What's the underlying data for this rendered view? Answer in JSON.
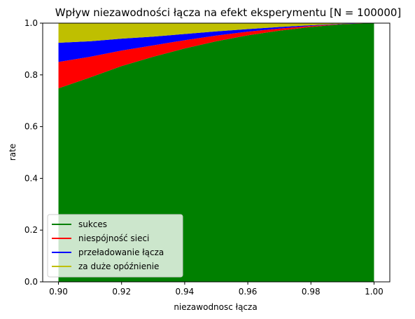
{
  "chart_data": {
    "type": "area",
    "stacked": true,
    "title": "Wpływ niezawodności łącza na efekt eksperymentu [N = 100000]",
    "xlabel": "niezawodnosc łącza",
    "ylabel": "rate",
    "xlim": [
      0.895,
      1.005
    ],
    "ylim": [
      0.0,
      1.0
    ],
    "xticks": [
      "0.90",
      "0.92",
      "0.94",
      "0.96",
      "0.98",
      "1.00"
    ],
    "xtick_values": [
      0.9,
      0.92,
      0.94,
      0.96,
      0.98,
      1.0
    ],
    "yticks": [
      "0.0",
      "0.2",
      "0.4",
      "0.6",
      "0.8",
      "1.0"
    ],
    "ytick_values": [
      0.0,
      0.2,
      0.4,
      0.6,
      0.8,
      1.0
    ],
    "grid": false,
    "legend_position": "lower-left",
    "x": [
      0.9,
      0.91,
      0.92,
      0.93,
      0.94,
      0.95,
      0.96,
      0.97,
      0.98,
      0.99,
      1.0
    ],
    "series": [
      {
        "name": "sukces",
        "color": "#008000",
        "values": [
          0.748,
          0.79,
          0.834,
          0.87,
          0.902,
          0.93,
          0.953,
          0.971,
          0.985,
          0.996,
          1.0
        ]
      },
      {
        "name": "niespójność sieci",
        "color": "#ff0000",
        "values": [
          0.102,
          0.08,
          0.06,
          0.044,
          0.032,
          0.022,
          0.014,
          0.008,
          0.004,
          0.001,
          0.0
        ]
      },
      {
        "name": "przeładowanie łącza",
        "color": "#0000ff",
        "values": [
          0.074,
          0.06,
          0.046,
          0.034,
          0.024,
          0.016,
          0.01,
          0.006,
          0.003,
          0.001,
          0.0
        ]
      },
      {
        "name": "za duże opóźnienie",
        "color": "#bfbf00",
        "values": [
          0.076,
          0.07,
          0.06,
          0.052,
          0.042,
          0.032,
          0.023,
          0.015,
          0.008,
          0.002,
          0.0
        ]
      }
    ]
  }
}
